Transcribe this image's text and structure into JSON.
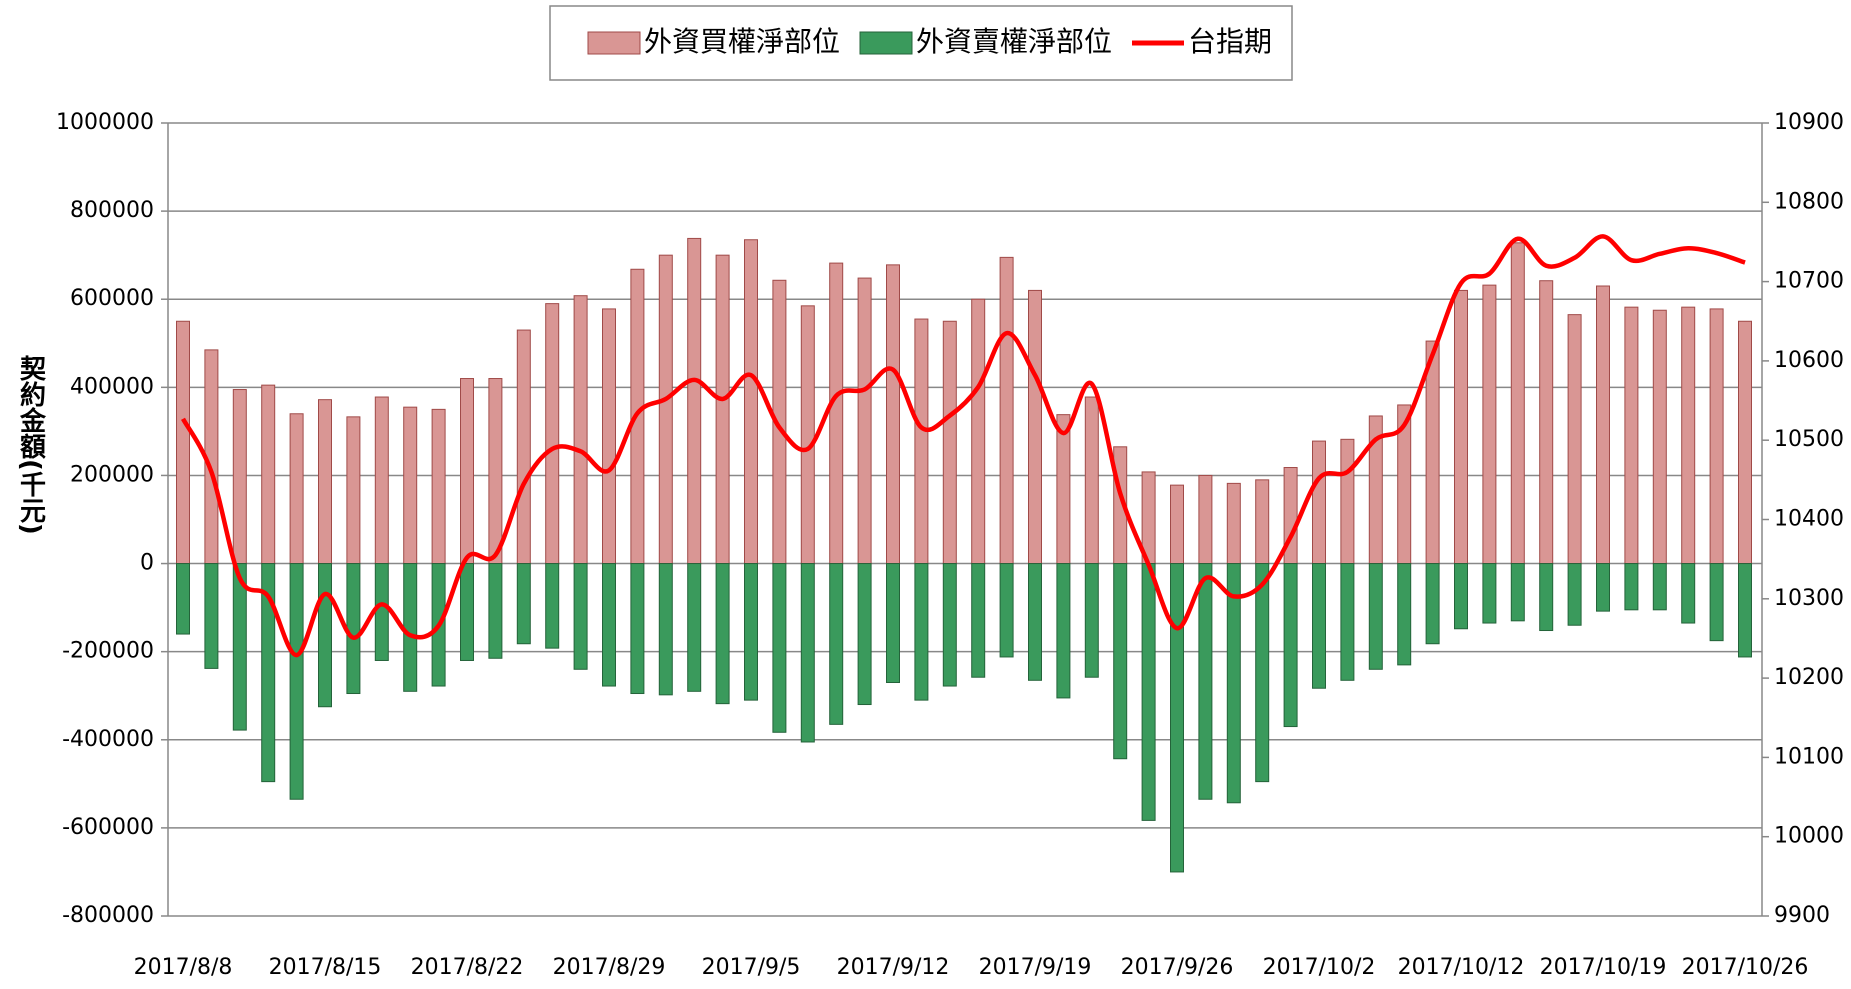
{
  "chart_data": {
    "type": "bar_line_dual_axis",
    "y_label": "契約金額(千元)",
    "categories": [
      "2017/8/8",
      null,
      null,
      null,
      null,
      "2017/8/15",
      null,
      null,
      null,
      null,
      "2017/8/22",
      null,
      null,
      null,
      null,
      "2017/8/29",
      null,
      null,
      null,
      null,
      "2017/9/5",
      null,
      null,
      null,
      null,
      "2017/9/12",
      null,
      null,
      null,
      null,
      "2017/9/19",
      null,
      null,
      null,
      null,
      "2017/9/26",
      null,
      null,
      null,
      null,
      "2017/10/2",
      null,
      null,
      null,
      null,
      "2017/10/12",
      null,
      null,
      null,
      null,
      "2017/10/19",
      null,
      null,
      null,
      null,
      "2017/10/26"
    ],
    "series": [
      {
        "name": "外資買權淨部位",
        "type": "bar",
        "color": "#d99694",
        "values": [
          550000,
          485000,
          395000,
          405000,
          340000,
          372000,
          333000,
          378000,
          355000,
          350000,
          420000,
          420000,
          530000,
          590000,
          608000,
          578000,
          668000,
          700000,
          738000,
          700000,
          735000,
          643000,
          585000,
          682000,
          648000,
          678000,
          555000,
          550000,
          600000,
          695000,
          620000,
          338000,
          378000,
          265000,
          208000,
          178000,
          200000,
          182000,
          190000,
          218000,
          278000,
          282000,
          335000,
          360000,
          505000,
          620000,
          632000,
          728000,
          642000,
          565000,
          630000,
          582000,
          575000,
          582000,
          578000,
          550000
        ]
      },
      {
        "name": "外資賣權淨部位",
        "type": "bar",
        "color": "#3a9a5c",
        "values": [
          -160000,
          -238000,
          -378000,
          -495000,
          -535000,
          -325000,
          -295000,
          -220000,
          -290000,
          -278000,
          -220000,
          -215000,
          -182000,
          -192000,
          -240000,
          -278000,
          -295000,
          -298000,
          -290000,
          -318000,
          -310000,
          -383000,
          -405000,
          -365000,
          -320000,
          -270000,
          -310000,
          -278000,
          -258000,
          -212000,
          -265000,
          -305000,
          -258000,
          -443000,
          -583000,
          -700000,
          -535000,
          -543000,
          -495000,
          -370000,
          -283000,
          -265000,
          -240000,
          -230000,
          -182000,
          -148000,
          -135000,
          -130000,
          -152000,
          -140000,
          -108000,
          -105000,
          -105000,
          -135000,
          -175000,
          -212000
        ]
      },
      {
        "name": "台指期",
        "type": "line",
        "axis": "y2",
        "color": "#ff0000",
        "values": [
          10527,
          10460,
          10326,
          10303,
          10229,
          10306,
          10251,
          10293,
          10254,
          10266,
          10352,
          10355,
          10445,
          10489,
          10486,
          10462,
          10534,
          10552,
          10576,
          10552,
          10582,
          10516,
          10489,
          10556,
          10564,
          10589,
          10516,
          10531,
          10567,
          10635,
          10582,
          10509,
          10571,
          10433,
          10343,
          10263,
          10326,
          10303,
          10318,
          10378,
          10452,
          10460,
          10501,
          10519,
          10608,
          10698,
          10710,
          10754,
          10720,
          10730,
          10757,
          10727,
          10735,
          10742,
          10736,
          10724
        ]
      }
    ],
    "ylim": [
      -800000,
      1000000
    ],
    "yticks": [
      -800000,
      -600000,
      -400000,
      -200000,
      0,
      200000,
      400000,
      600000,
      800000,
      1000000
    ],
    "y2lim": [
      9900,
      10900
    ],
    "y2ticks": [
      9900,
      10000,
      10100,
      10200,
      10300,
      10400,
      10500,
      10600,
      10700,
      10800,
      10900
    ],
    "grid": true,
    "legend": "top"
  }
}
